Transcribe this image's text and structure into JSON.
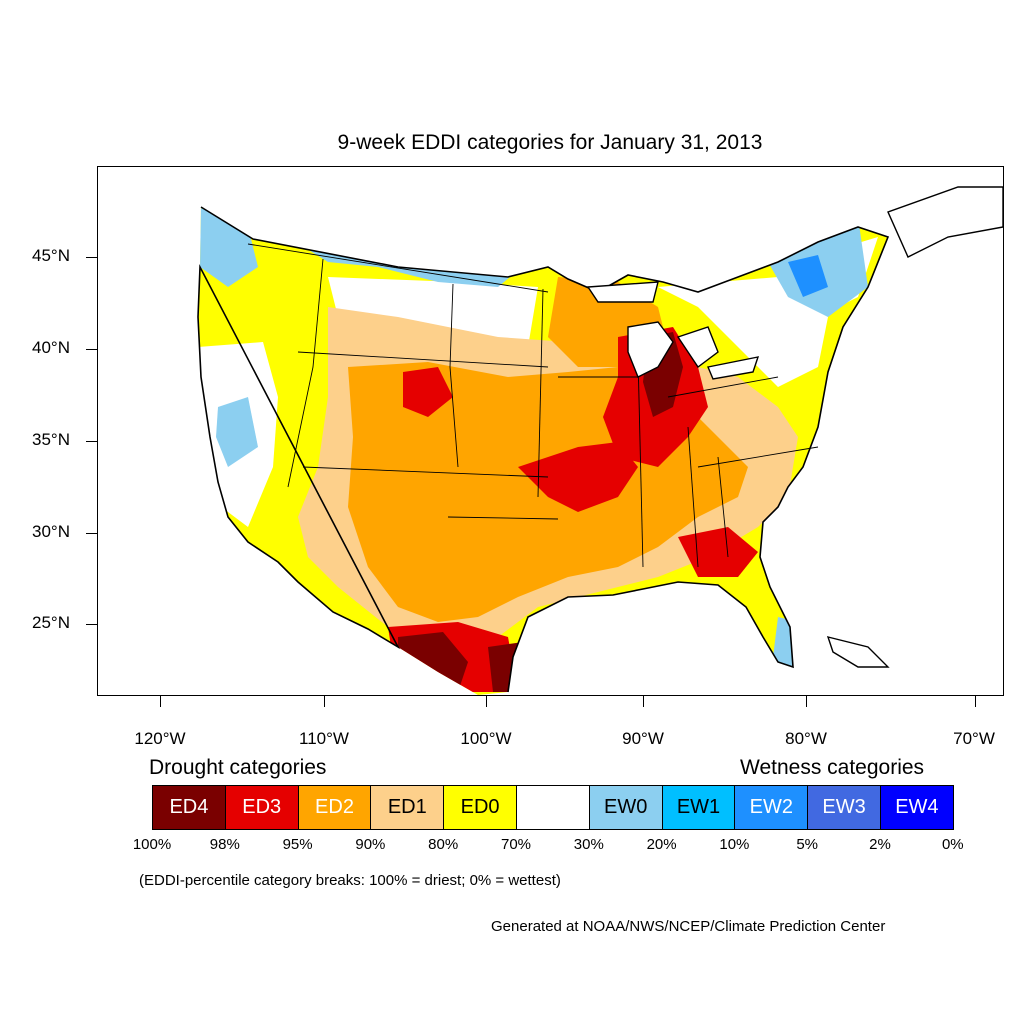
{
  "title": "9-week EDDI categories for January 31, 2013",
  "y_axis_labels": [
    "45°N",
    "40°N",
    "35°N",
    "30°N",
    "25°N"
  ],
  "x_axis_labels": [
    "120°W",
    "110°W",
    "100°W",
    "90°W",
    "80°W",
    "70°W"
  ],
  "legend": {
    "drought_heading": "Drought categories",
    "wetness_heading": "Wetness categories",
    "categories": [
      {
        "label": "ED4",
        "color": "#7a0000",
        "text_color": "#ffffff"
      },
      {
        "label": "ED3",
        "color": "#e50000",
        "text_color": "#ffffff"
      },
      {
        "label": "ED2",
        "color": "#ffa500",
        "text_color": "#ffffff"
      },
      {
        "label": "ED1",
        "color": "#fdd08b",
        "text_color": "#000000"
      },
      {
        "label": "ED0",
        "color": "#ffff00",
        "text_color": "#000000"
      },
      {
        "label": "",
        "color": "#ffffff",
        "text_color": "#000000"
      },
      {
        "label": "EW0",
        "color": "#8ccff0",
        "text_color": "#000000"
      },
      {
        "label": "EW1",
        "color": "#00bfff",
        "text_color": "#000000"
      },
      {
        "label": "EW2",
        "color": "#1e90ff",
        "text_color": "#ffffff"
      },
      {
        "label": "EW3",
        "color": "#4169e1",
        "text_color": "#ffffff"
      },
      {
        "label": "EW4",
        "color": "#0000ff",
        "text_color": "#ffffff"
      }
    ],
    "percent_breaks": [
      "100%",
      "98%",
      "95%",
      "90%",
      "80%",
      "70%",
      "30%",
      "20%",
      "10%",
      "5%",
      "2%",
      "0%"
    ]
  },
  "note": "(EDDI-percentile category breaks: 100% = driest; 0% = wettest)",
  "credit": "Generated at NOAA/NWS/NCEP/Climate Prediction Center"
}
